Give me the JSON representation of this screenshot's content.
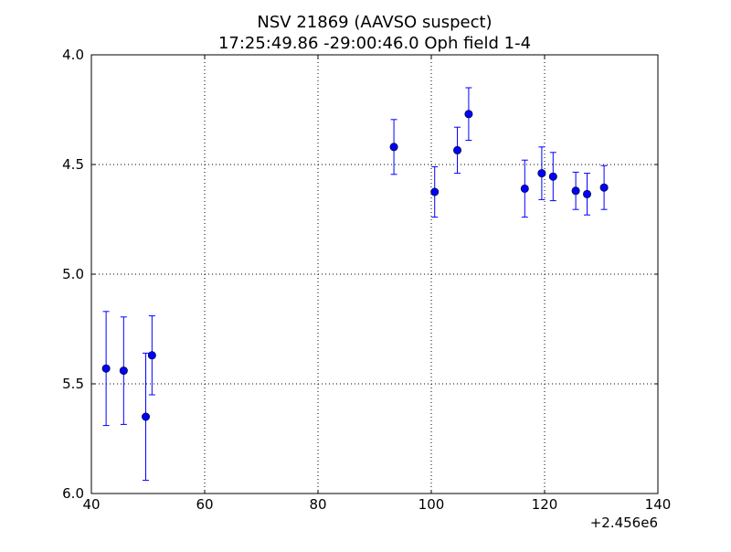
{
  "chart_data": {
    "type": "scatter",
    "title_lines": [
      "NSV 21869 (AAVSO suspect)",
      "17:25:49.86 -29:00:46.0 Oph field 1-4"
    ],
    "xlabel": "",
    "ylabel": "",
    "x_offset_label": "+2.456e6",
    "xlim": [
      40,
      140
    ],
    "ylim": [
      4.0,
      6.0
    ],
    "y_inverted": true,
    "grid": true,
    "x_ticks": [
      40,
      60,
      80,
      100,
      120,
      140
    ],
    "x_tick_labels": [
      "40",
      "60",
      "80",
      "100",
      "120",
      "140"
    ],
    "y_ticks": [
      4.0,
      4.5,
      5.0,
      5.5,
      6.0
    ],
    "y_tick_labels": [
      "4.0",
      "4.5",
      "5.0",
      "5.5",
      "6.0"
    ],
    "marker_color": "#0000ff",
    "points": [
      {
        "x": 42.6,
        "y": 5.43,
        "err": 0.26
      },
      {
        "x": 45.7,
        "y": 5.44,
        "err": 0.245
      },
      {
        "x": 49.6,
        "y": 5.65,
        "err": 0.29
      },
      {
        "x": 50.7,
        "y": 5.37,
        "err": 0.18
      },
      {
        "x": 93.4,
        "y": 4.42,
        "err": 0.125
      },
      {
        "x": 100.6,
        "y": 4.625,
        "err": 0.115
      },
      {
        "x": 104.6,
        "y": 4.435,
        "err": 0.105
      },
      {
        "x": 106.6,
        "y": 4.27,
        "err": 0.12
      },
      {
        "x": 116.5,
        "y": 4.61,
        "err": 0.13
      },
      {
        "x": 119.5,
        "y": 4.54,
        "err": 0.12
      },
      {
        "x": 121.5,
        "y": 4.555,
        "err": 0.11
      },
      {
        "x": 125.5,
        "y": 4.62,
        "err": 0.085
      },
      {
        "x": 127.5,
        "y": 4.635,
        "err": 0.095
      },
      {
        "x": 130.5,
        "y": 4.605,
        "err": 0.1
      }
    ]
  }
}
